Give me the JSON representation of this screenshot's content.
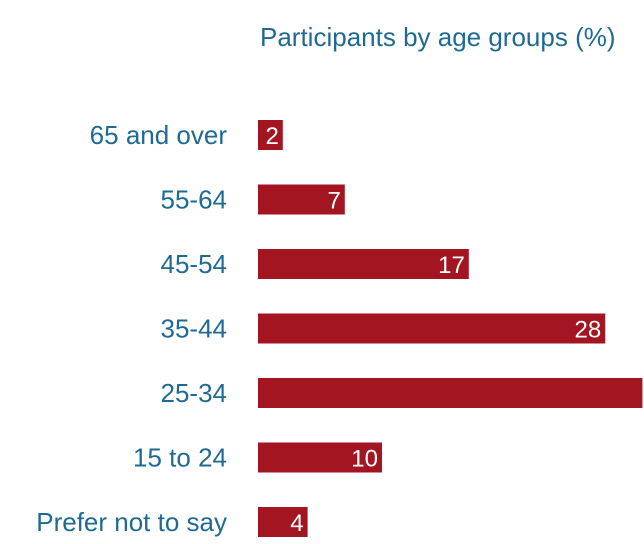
{
  "chart_data": {
    "type": "bar",
    "orientation": "horizontal",
    "title": "Participants by age groups (%)",
    "categories": [
      "65 and over",
      "55-64",
      "45-54",
      "35-44",
      "25-34",
      "15 to 24",
      "Prefer not to say"
    ],
    "values": [
      2,
      7,
      17,
      28,
      31,
      10,
      4
    ],
    "data_labels": [
      "2",
      "7",
      "17",
      "28",
      "",
      "10",
      "4"
    ],
    "xlim": [
      0,
      31
    ],
    "grid": false,
    "legend": "none",
    "colors": {
      "bar": "#a31621",
      "text": "#1f6a93",
      "value_label": "#ffffff"
    }
  }
}
